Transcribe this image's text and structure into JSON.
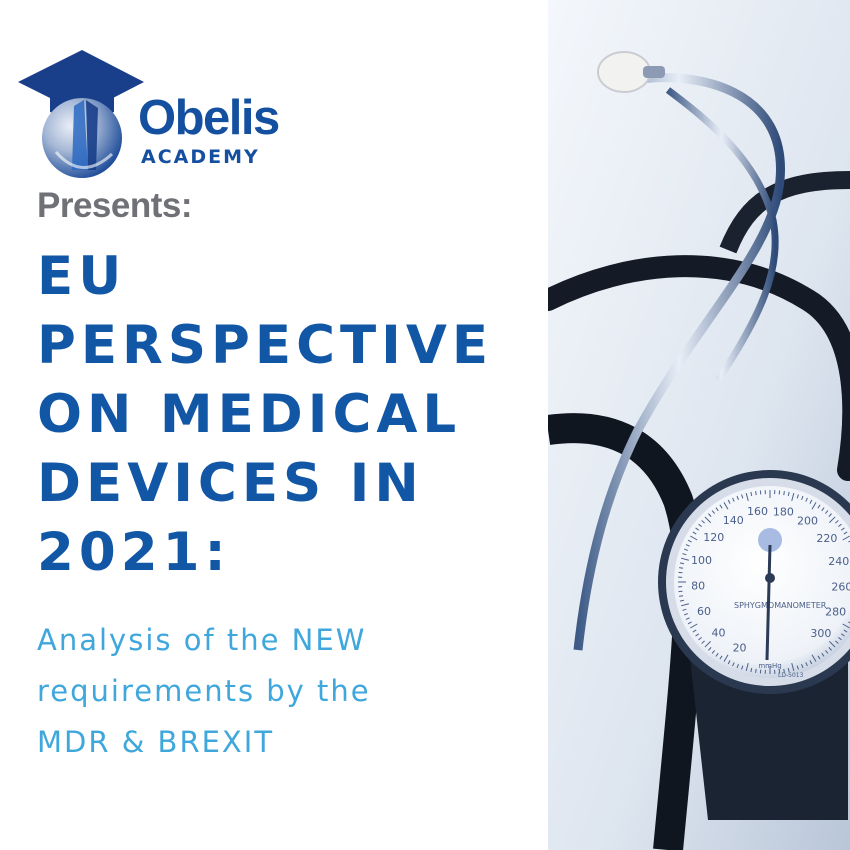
{
  "logo": {
    "icon": "graduation-cap-emblem-icon",
    "name": "Obelis",
    "subtitle": "ACADEMY"
  },
  "presents": "Presents:",
  "headline": {
    "lines": [
      "EU",
      "PERSPECTIVE",
      "ON MEDICAL",
      "DEVICES IN",
      "2021:"
    ]
  },
  "subheadline": {
    "lines": [
      "Analysis of the NEW",
      "requirements by the",
      "MDR & BREXIT"
    ]
  },
  "photo": {
    "subject": "stethoscope-with-sphygmomanometer",
    "gauge": {
      "scale_labels": [
        "20",
        "40",
        "60",
        "80",
        "100",
        "120",
        "140",
        "160",
        "180",
        "200",
        "220",
        "240",
        "260",
        "280",
        "300"
      ],
      "brand_text": "SPHYGMOMANOMETER",
      "unit": "mmHg",
      "model": "LD-5013"
    }
  },
  "colors": {
    "primary_blue": "#1257a6",
    "light_blue": "#3fa7dc",
    "gray": "#6f7176"
  }
}
